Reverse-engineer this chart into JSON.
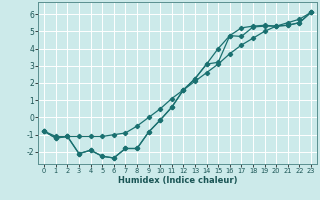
{
  "xlabel": "Humidex (Indice chaleur)",
  "background_color": "#cceaea",
  "grid_color": "#ffffff",
  "line_color": "#1a7070",
  "xlim": [
    -0.5,
    23.5
  ],
  "ylim": [
    -2.7,
    6.7
  ],
  "xticks": [
    0,
    1,
    2,
    3,
    4,
    5,
    6,
    7,
    8,
    9,
    10,
    11,
    12,
    13,
    14,
    15,
    16,
    17,
    18,
    19,
    20,
    21,
    22,
    23
  ],
  "yticks": [
    -2,
    -1,
    0,
    1,
    2,
    3,
    4,
    5,
    6
  ],
  "line1_x": [
    0,
    1,
    2,
    3,
    4,
    5,
    6,
    7,
    8,
    9,
    10,
    11,
    12,
    13,
    14,
    15,
    16,
    17,
    18,
    19,
    20,
    21,
    22,
    23
  ],
  "line1_y": [
    -0.8,
    -1.2,
    -1.1,
    -2.1,
    -1.9,
    -2.25,
    -2.35,
    -1.8,
    -1.8,
    -0.85,
    -0.15,
    0.6,
    1.6,
    2.25,
    3.1,
    3.2,
    4.75,
    4.7,
    5.25,
    5.3,
    5.3,
    5.35,
    5.5,
    6.1
  ],
  "line2_x": [
    0,
    1,
    2,
    3,
    4,
    5,
    6,
    7,
    8,
    9,
    10,
    11,
    12,
    13,
    14,
    15,
    16,
    17,
    18,
    19,
    20,
    21,
    22,
    23
  ],
  "line2_y": [
    -0.8,
    -1.2,
    -1.1,
    -2.1,
    -1.9,
    -2.25,
    -2.35,
    -1.8,
    -1.8,
    -0.85,
    -0.15,
    0.6,
    1.6,
    2.25,
    3.1,
    4.0,
    4.75,
    5.2,
    5.3,
    5.35,
    5.3,
    5.35,
    5.5,
    6.1
  ],
  "line3_x": [
    0,
    1,
    2,
    3,
    4,
    5,
    6,
    7,
    8,
    9,
    10,
    11,
    12,
    13,
    14,
    15,
    16,
    17,
    18,
    19,
    20,
    21,
    22,
    23
  ],
  "line3_y": [
    -0.8,
    -1.1,
    -1.1,
    -1.1,
    -1.1,
    -1.1,
    -1.0,
    -0.9,
    -0.5,
    0.0,
    0.5,
    1.1,
    1.6,
    2.1,
    2.6,
    3.1,
    3.7,
    4.2,
    4.6,
    5.0,
    5.3,
    5.5,
    5.7,
    6.1
  ]
}
